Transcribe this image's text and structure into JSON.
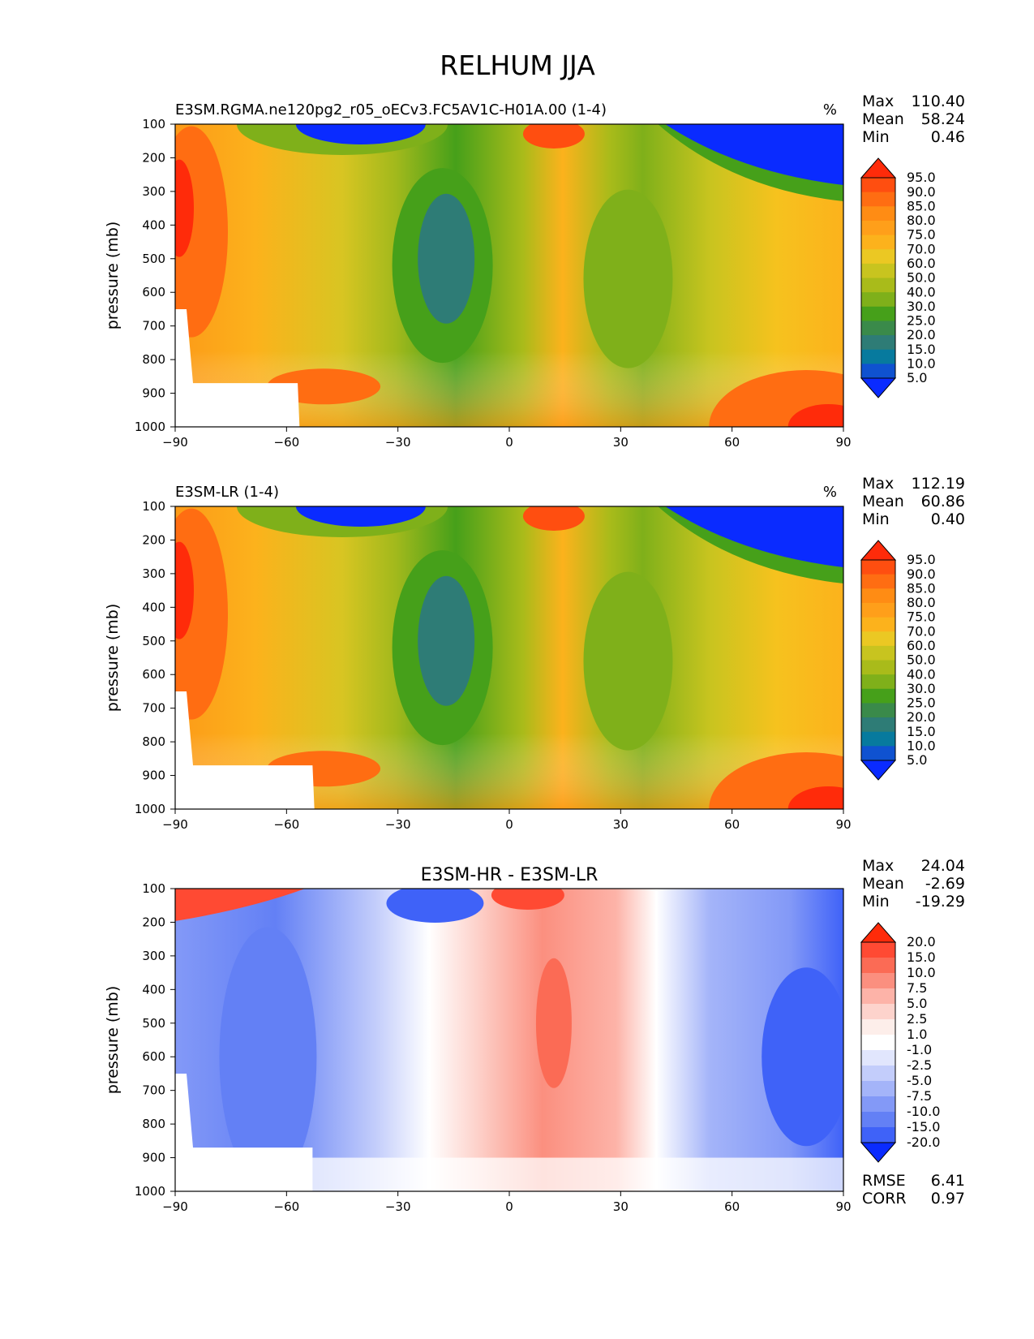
{
  "figure_title": "RELHUM JJA",
  "chart_data": [
    {
      "type": "heatmap",
      "title": "E3SM.RGMA.ne120pg2_r05_oECv3.FC5AV1C-H01A.00 (1-4)",
      "units": "%",
      "ylabel": "pressure (mb)",
      "xlabel": "",
      "x_ticks": [
        "−90",
        "−60",
        "−30",
        "0",
        "30",
        "60",
        "90"
      ],
      "y_ticks": [
        "100",
        "200",
        "300",
        "400",
        "500",
        "600",
        "700",
        "800",
        "900",
        "1000"
      ],
      "xlim": [
        -90,
        90
      ],
      "ylim": [
        1000,
        100
      ],
      "stats": [
        [
          "Max",
          "110.40"
        ],
        [
          "Mean",
          "58.24"
        ],
        [
          "Min",
          "0.46"
        ]
      ],
      "colorbar_levels": [
        "95.0",
        "90.0",
        "85.0",
        "80.0",
        "75.0",
        "70.0",
        "60.0",
        "50.0",
        "40.0",
        "30.0",
        "25.0",
        "20.0",
        "15.0",
        "10.0",
        "5.0"
      ],
      "colorbar_colors": [
        "#ff2b0a",
        "#ff4e10",
        "#ff6d12",
        "#ff8c14",
        "#ff9f1a",
        "#fcb21c",
        "#ebc823",
        "#c8c41f",
        "#a9bb1a",
        "#7fb01a",
        "#46a01a",
        "#3a8a4a",
        "#2e7c76",
        "#077a9e",
        "#0f52d0",
        "#0a2bff"
      ]
    },
    {
      "type": "heatmap",
      "title": "E3SM-LR (1-4)",
      "units": "%",
      "ylabel": "pressure (mb)",
      "xlabel": "",
      "x_ticks": [
        "−90",
        "−60",
        "−30",
        "0",
        "30",
        "60",
        "90"
      ],
      "y_ticks": [
        "100",
        "200",
        "300",
        "400",
        "500",
        "600",
        "700",
        "800",
        "900",
        "1000"
      ],
      "xlim": [
        -90,
        90
      ],
      "ylim": [
        1000,
        100
      ],
      "stats": [
        [
          "Max",
          "112.19"
        ],
        [
          "Mean",
          "60.86"
        ],
        [
          "Min",
          "0.40"
        ]
      ],
      "colorbar_levels": [
        "95.0",
        "90.0",
        "85.0",
        "80.0",
        "75.0",
        "70.0",
        "60.0",
        "50.0",
        "40.0",
        "30.0",
        "25.0",
        "20.0",
        "15.0",
        "10.0",
        "5.0"
      ],
      "colorbar_colors": [
        "#ff2b0a",
        "#ff4e10",
        "#ff6d12",
        "#ff8c14",
        "#ff9f1a",
        "#fcb21c",
        "#ebc823",
        "#c8c41f",
        "#a9bb1a",
        "#7fb01a",
        "#46a01a",
        "#3a8a4a",
        "#2e7c76",
        "#077a9e",
        "#0f52d0",
        "#0a2bff"
      ]
    },
    {
      "type": "heatmap",
      "title": "E3SM-HR - E3SM-LR",
      "units": "",
      "ylabel": "pressure (mb)",
      "xlabel": "",
      "x_ticks": [
        "−90",
        "−60",
        "−30",
        "0",
        "30",
        "60",
        "90"
      ],
      "y_ticks": [
        "100",
        "200",
        "300",
        "400",
        "500",
        "600",
        "700",
        "800",
        "900",
        "1000"
      ],
      "xlim": [
        -90,
        90
      ],
      "ylim": [
        1000,
        100
      ],
      "stats": [
        [
          "Max",
          "24.04"
        ],
        [
          "Mean",
          "-2.69"
        ],
        [
          "Min",
          "-19.29"
        ]
      ],
      "extra_stats": [
        [
          "RMSE",
          "6.41"
        ],
        [
          "CORR",
          "0.97"
        ]
      ],
      "colorbar_levels": [
        "20.0",
        "15.0",
        "10.0",
        "7.5",
        "5.0",
        "2.5",
        "1.0",
        "-1.0",
        "-2.5",
        "-5.0",
        "-7.5",
        "-10.0",
        "-15.0",
        "-20.0"
      ],
      "colorbar_colors": [
        "#ff2b0a",
        "#ff4a33",
        "#fb6b55",
        "#fb8f7f",
        "#fdb3a8",
        "#fdd3cc",
        "#fdeeea",
        "#ffffff",
        "#e1e6fd",
        "#c3cdfb",
        "#a4b4f9",
        "#8399f7",
        "#6380f5",
        "#3f62f8",
        "#0a2bff"
      ]
    }
  ]
}
